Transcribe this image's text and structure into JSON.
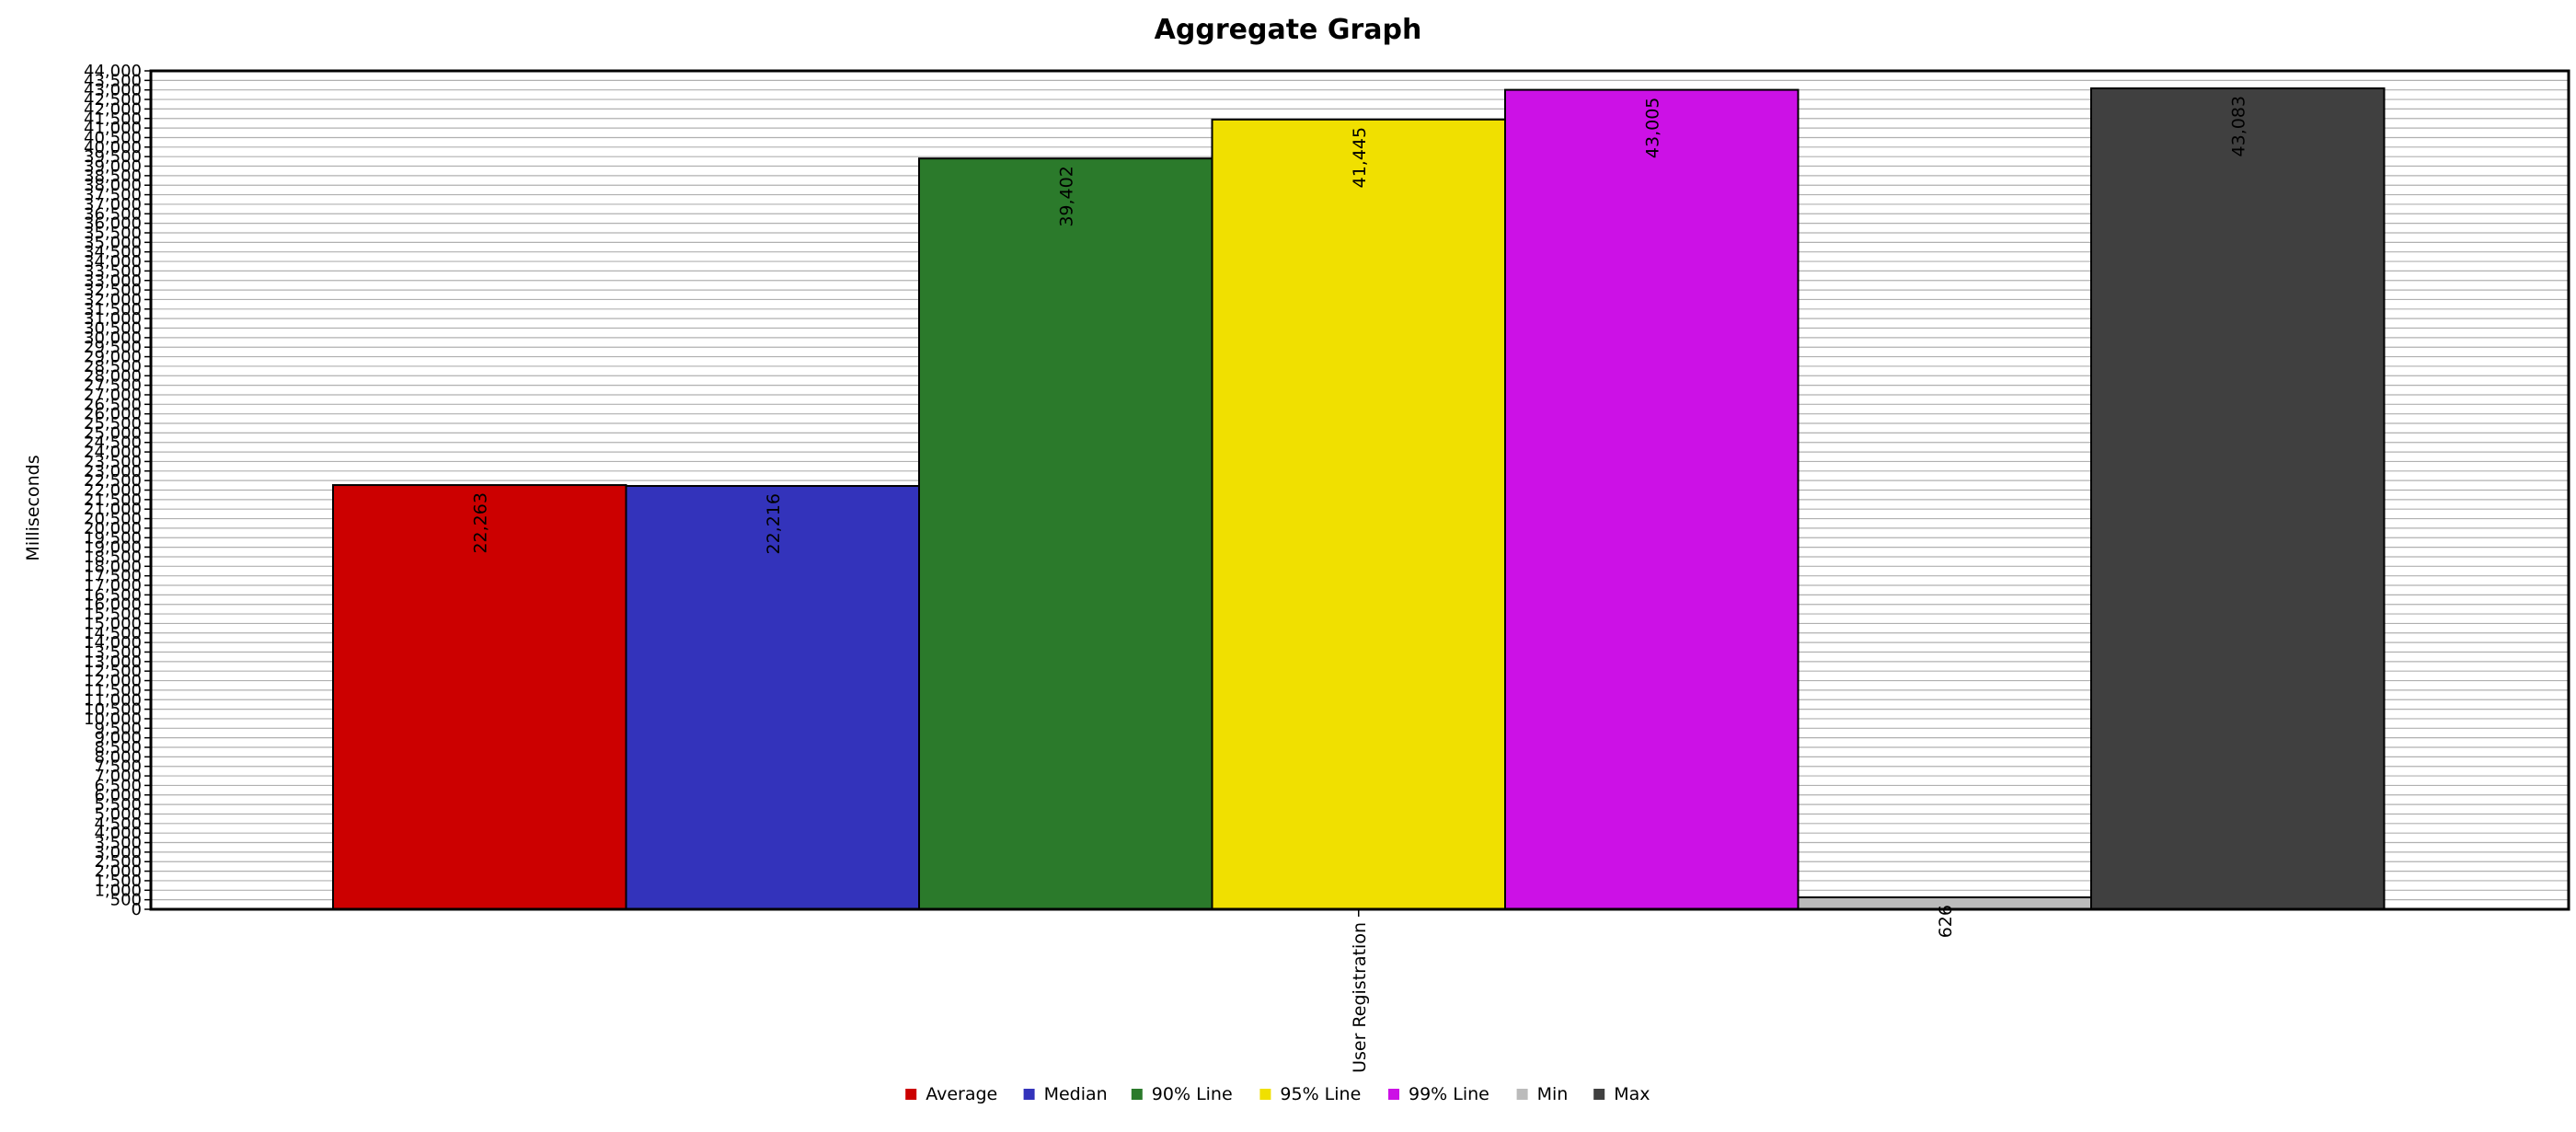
{
  "chart_data": {
    "type": "bar",
    "title": "Aggregate Graph",
    "ylabel": "Milliseconds",
    "xlabel": "",
    "categories": [
      "User Registration"
    ],
    "series": [
      {
        "name": "Average",
        "color": "#cc0000",
        "values": [
          22263
        ],
        "label": "22,263"
      },
      {
        "name": "Median",
        "color": "#3333bb",
        "values": [
          22216
        ],
        "label": "22,216"
      },
      {
        "name": "90% Line",
        "color": "#2b7a2b",
        "values": [
          39402
        ],
        "label": "39,402"
      },
      {
        "name": "95% Line",
        "color": "#f0e000",
        "values": [
          41445
        ],
        "label": "41,445"
      },
      {
        "name": "99% Line",
        "color": "#cc11e6",
        "values": [
          43005
        ],
        "label": "43,005"
      },
      {
        "name": "Min",
        "color": "#bbbbbb",
        "values": [
          626
        ],
        "label": "626"
      },
      {
        "name": "Max",
        "color": "#404040",
        "values": [
          43083
        ],
        "label": "43,083"
      }
    ],
    "ylim": [
      0,
      44000
    ],
    "ytick_step": 500,
    "ytick_labels": [
      "0",
      "500",
      "1,000",
      "1,500",
      "2,000",
      "2,500",
      "3,000",
      "3,500",
      "4,000",
      "4,500",
      "5,000",
      "5,500",
      "6,000",
      "6,500",
      "7,000",
      "7,500",
      "8,000",
      "8,500",
      "9,000",
      "9,500",
      "10,000",
      "10,500",
      "11,000",
      "11,500",
      "12,000",
      "12,500",
      "13,000",
      "13,500",
      "14,000",
      "14,500",
      "15,000",
      "15,500",
      "16,000",
      "16,500",
      "17,000",
      "17,500",
      "18,000",
      "18,500",
      "19,000",
      "19,500",
      "20,000",
      "20,500",
      "21,000",
      "21,500",
      "22,000",
      "22,500",
      "23,000",
      "23,500",
      "24,000",
      "24,500",
      "25,000",
      "25,500",
      "26,000",
      "26,500",
      "27,000",
      "27,500",
      "28,000",
      "28,500",
      "29,000",
      "29,500",
      "30,000",
      "30,500",
      "31,000",
      "31,500",
      "32,000",
      "32,500",
      "33,000",
      "33,500",
      "34,000",
      "34,500",
      "35,000",
      "35,500",
      "36,000",
      "36,500",
      "37,000",
      "37,500",
      "38,000",
      "38,500",
      "39,000",
      "39,500",
      "40,000",
      "40,500",
      "41,000",
      "41,500",
      "42,000",
      "42,500",
      "43,000",
      "43,500",
      "44,000"
    ],
    "grid": true,
    "legend_position": "bottom-center",
    "plot_background": "#ffffff",
    "grid_color": "#b0b0b0"
  }
}
